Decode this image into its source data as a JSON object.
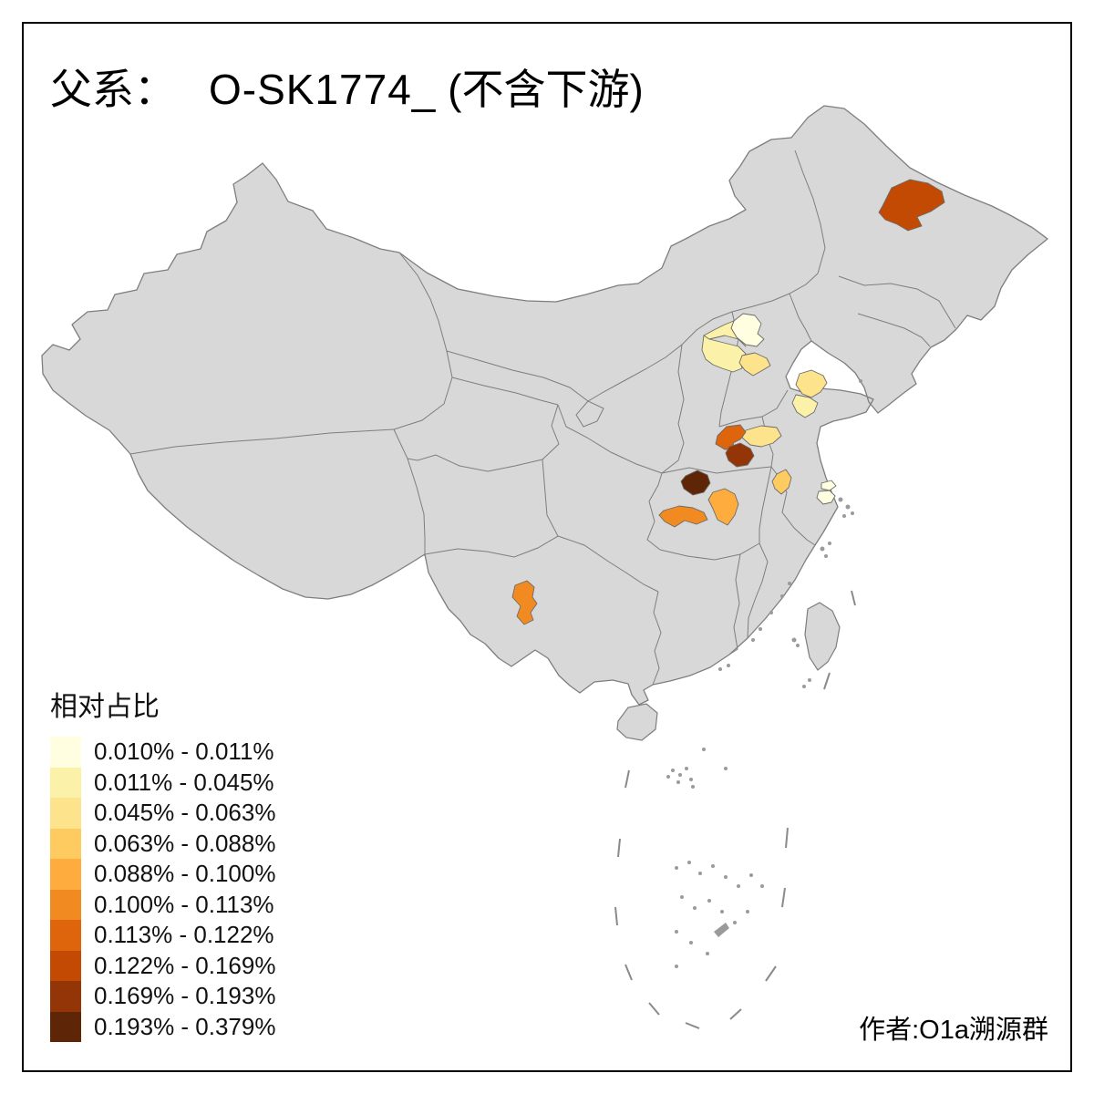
{
  "title": {
    "prefix": "父系：",
    "haplogroup": "O-SK1774_",
    "suffix": " (不含下游)"
  },
  "credit": "作者:O1a溯源群",
  "legend": {
    "title": "相对占比",
    "items": [
      {
        "label": "0.010% - 0.011%",
        "color": "#FFFEE0"
      },
      {
        "label": "0.011% - 0.045%",
        "color": "#FBF1A9"
      },
      {
        "label": "0.045% - 0.063%",
        "color": "#FEE38D"
      },
      {
        "label": "0.063% - 0.088%",
        "color": "#FECB60"
      },
      {
        "label": "0.088% - 0.100%",
        "color": "#FDAC3D"
      },
      {
        "label": "0.100% - 0.113%",
        "color": "#F18A21"
      },
      {
        "label": "0.113% - 0.122%",
        "color": "#DF650C"
      },
      {
        "label": "0.122% - 0.169%",
        "color": "#C24A03"
      },
      {
        "label": "0.169% - 0.193%",
        "color": "#933507"
      },
      {
        "label": "0.193% - 0.379%",
        "color": "#5F2507"
      }
    ]
  },
  "map": {
    "land": "#D8D8D8",
    "boundary": "#7E7E7E",
    "sea": "#FFFFFF",
    "frame": "#000000"
  },
  "chart_data": {
    "type": "choropleth-map",
    "subject": "Relative share of paternal haplogroup O-SK1774_ (downstream excluded) by Chinese prefecture",
    "metric_label": "相对占比",
    "bins": [
      "0.010% - 0.011%",
      "0.011% - 0.045%",
      "0.045% - 0.063%",
      "0.063% - 0.088%",
      "0.088% - 0.100%",
      "0.100% - 0.113%",
      "0.113% - 0.122%",
      "0.122% - 0.169%",
      "0.169% - 0.193%",
      "0.193% - 0.379%"
    ],
    "regions": [
      {
        "id": "heilongjiang-central",
        "bin_label": "0.122% - 0.169%",
        "color": "#C24A03"
      },
      {
        "id": "beijing",
        "bin_label": "0.010% - 0.011%",
        "color": "#FFFEE0"
      },
      {
        "id": "hebei-baoding",
        "bin_label": "0.011% - 0.045%",
        "color": "#FBF1A9"
      },
      {
        "id": "hebei-langfang-cangzhou",
        "bin_label": "0.045% - 0.063%",
        "color": "#FEE38D"
      },
      {
        "id": "shandong-weifang",
        "bin_label": "0.045% - 0.063%",
        "color": "#FEE38D"
      },
      {
        "id": "shandong-qingdao-rizhao",
        "bin_label": "0.011% - 0.045%",
        "color": "#FBF1A9"
      },
      {
        "id": "shandong-south-linyi",
        "bin_label": "0.045% - 0.063%",
        "color": "#FEE38D"
      },
      {
        "id": "henan-kaifeng",
        "bin_label": "0.113% - 0.122%",
        "color": "#DF650C"
      },
      {
        "id": "henan-south",
        "bin_label": "0.169% - 0.193%",
        "color": "#933507"
      },
      {
        "id": "henan-nanyang",
        "bin_label": "0.193% - 0.379%",
        "color": "#5F2507"
      },
      {
        "id": "hubei-central",
        "bin_label": "0.088% - 0.100%",
        "color": "#FDAC3D"
      },
      {
        "id": "hubei-west",
        "bin_label": "0.100% - 0.113%",
        "color": "#F18A21"
      },
      {
        "id": "anhui-chuzhou",
        "bin_label": "0.063% - 0.088%",
        "color": "#FECB60"
      },
      {
        "id": "jiangsu-coast-north",
        "bin_label": "0.010% - 0.011%",
        "color": "#FFFEE0"
      },
      {
        "id": "jiangsu-coast-south",
        "bin_label": "0.010% - 0.011%",
        "color": "#FFFEE0"
      },
      {
        "id": "yunnan-central",
        "bin_label": "0.100% - 0.113%",
        "color": "#F18A21"
      }
    ]
  }
}
